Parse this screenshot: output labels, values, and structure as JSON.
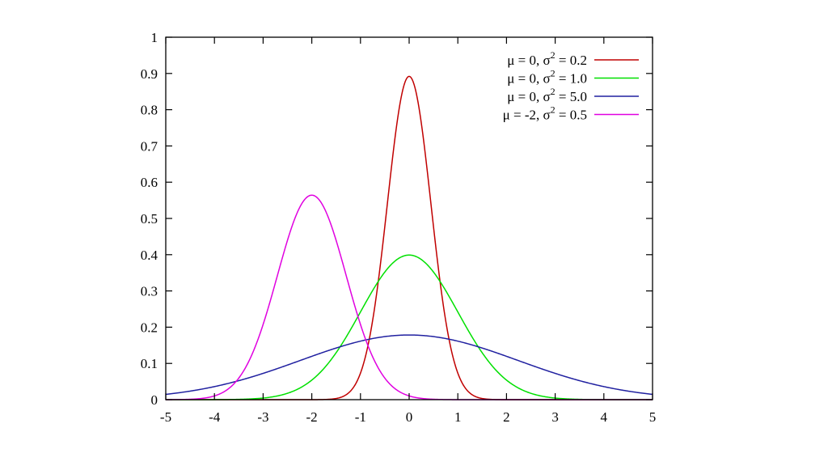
{
  "chart_data": {
    "type": "line",
    "title": "",
    "xlabel": "",
    "ylabel": "",
    "xlim": [
      -5,
      5
    ],
    "ylim": [
      0,
      1
    ],
    "grid": false,
    "legend_position": "top-right",
    "x_ticks": [
      "-5",
      "-4",
      "-3",
      "-2",
      "-1",
      "0",
      "1",
      "2",
      "3",
      "4",
      "5"
    ],
    "y_ticks": [
      "0",
      "0.1",
      "0.2",
      "0.3",
      "0.4",
      "0.5",
      "0.6",
      "0.7",
      "0.8",
      "0.9",
      "1"
    ],
    "series": [
      {
        "name": "μ =  0, σ² = 0.2",
        "legend_prefix": "μ =  0, σ",
        "legend_sup": "2",
        "legend_suffix": " = 0.2",
        "color": "#c00000",
        "mean": 0,
        "variance": 0.2,
        "peak": 0.892
      },
      {
        "name": "μ =  0, σ² = 1.0",
        "legend_prefix": "μ =  0, σ",
        "legend_sup": "2",
        "legend_suffix": " = 1.0",
        "color": "#00e000",
        "mean": 0,
        "variance": 1.0,
        "peak": 0.399
      },
      {
        "name": "μ =  0, σ² = 5.0",
        "legend_prefix": "μ =  0, σ",
        "legend_sup": "2",
        "legend_suffix": " = 5.0",
        "color": "#2020a0",
        "mean": 0,
        "variance": 5.0,
        "peak": 0.178
      },
      {
        "name": "μ = -2, σ² = 0.5",
        "legend_prefix": "μ = -2, σ",
        "legend_sup": "2",
        "legend_suffix": " = 0.5",
        "color": "#e000e0",
        "mean": -2,
        "variance": 0.5,
        "peak": 0.564
      }
    ]
  }
}
